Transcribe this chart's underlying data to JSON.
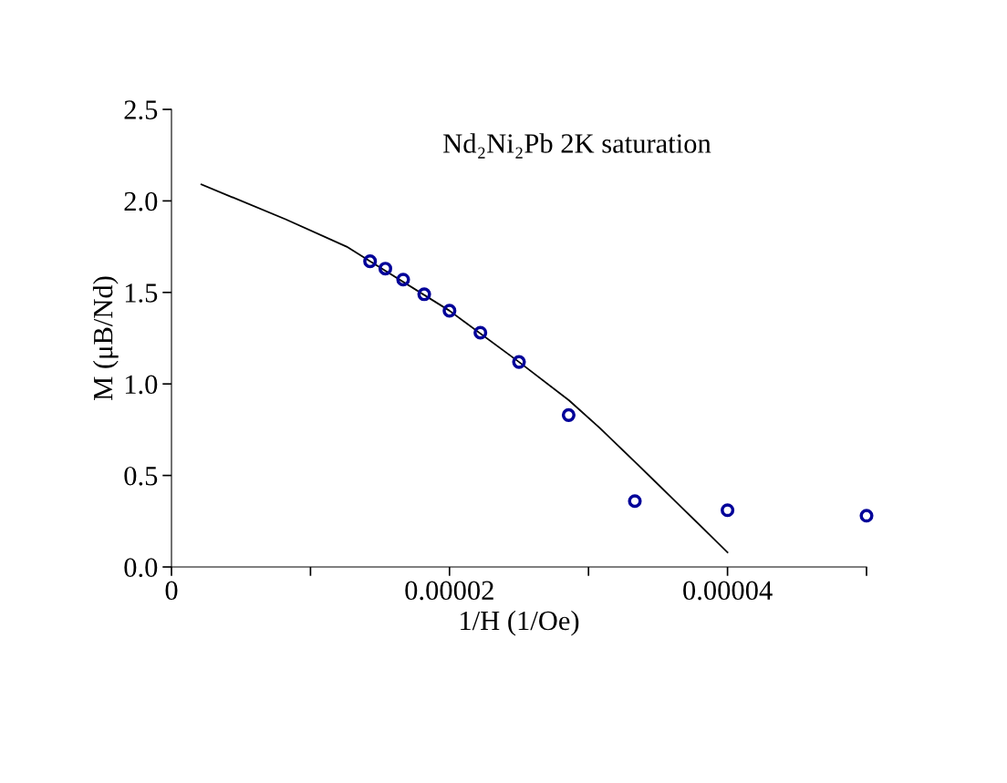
{
  "chart_data": {
    "type": "scatter",
    "xlabel": "1/H (1/Oe)",
    "ylabel": "M (μB/Nd)",
    "annotations": [
      "Nd₂Ni₂Pb 2K saturation"
    ],
    "xlim": [
      0,
      5e-05
    ],
    "xticks": [
      0,
      {
        "value": 1e-05,
        "label": null
      },
      {
        "value": 2e-05,
        "label": "0.00002"
      },
      {
        "value": 3e-05,
        "label": null
      },
      {
        "value": 4e-05,
        "label": "0.00004"
      },
      {
        "value": 5e-05,
        "label": null
      }
    ],
    "ylim": [
      0,
      2.5
    ],
    "yticks": [
      {
        "value": 0,
        "label": "0.0"
      },
      0.5,
      {
        "value": 1,
        "label": "1.0"
      },
      1.5,
      {
        "value": 2,
        "label": "2.0"
      },
      2.5
    ],
    "grid": false,
    "legend": false,
    "series": [
      {
        "marker": "circle",
        "color": "#000099",
        "x": [
          1.4286e-05,
          1.5385e-05,
          1.6667e-05,
          1.8182e-05,
          2e-05,
          2.2222e-05,
          2.5e-05,
          2.8571e-05,
          3.3333e-05,
          4e-05,
          5e-05
        ],
        "values": [
          1.67,
          1.63,
          1.57,
          1.49,
          1.4,
          1.28,
          1.12,
          0.83,
          0.36,
          0.31,
          0.28
        ]
      },
      {
        "type": "line",
        "marker": "none",
        "line_style": "solid",
        "color": "#000000",
        "x": [
          2.15e-06,
          8.2e-06,
          1.26e-05,
          1.43e-05,
          2e-05,
          2.5e-05,
          2.86e-05,
          3.08e-05,
          3.34e-05,
          4e-05
        ],
        "values": [
          2.09,
          1.9,
          1.75,
          1.67,
          1.4,
          1.12,
          0.91,
          0.76,
          0.57,
          0.08
        ]
      }
    ]
  }
}
